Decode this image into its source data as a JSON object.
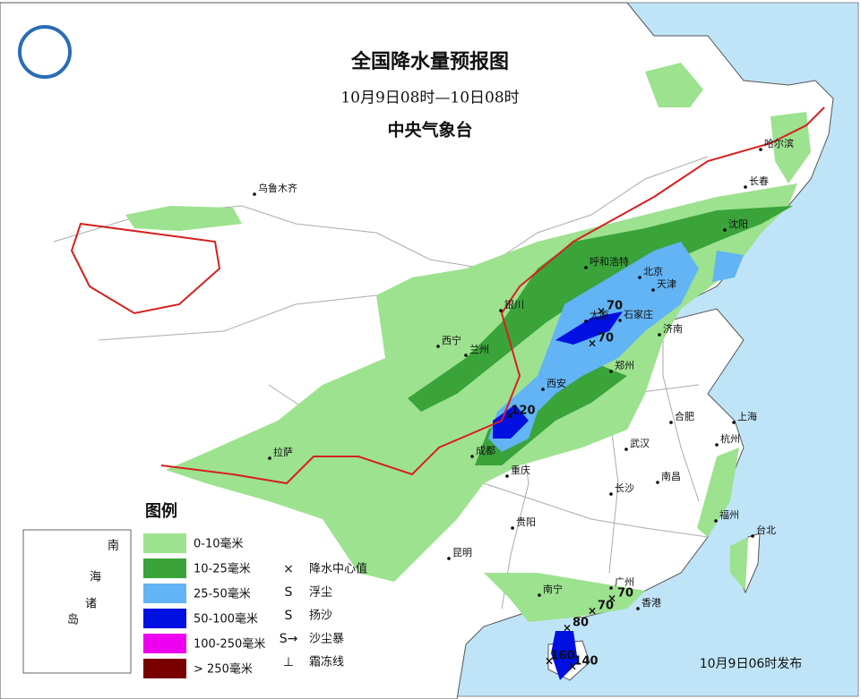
{
  "title": "全国降水量预报图",
  "period": "10月9日08时—10日08时",
  "issuer": "中央气象台",
  "cities": [
    "乌鲁木齐",
    "哈尔滨",
    "长春",
    "沈阳",
    "呼和浩特",
    "北京",
    "天津",
    "石家庄",
    "太原",
    "济南",
    "银川",
    "西宁",
    "兰州",
    "西安",
    "郑州",
    "合肥",
    "上海",
    "杭州",
    "武汉",
    "成都",
    "重庆",
    "拉萨",
    "长沙",
    "南昌",
    "贵阳",
    "福州",
    "台北",
    "昆明",
    "南宁",
    "广州",
    "香港"
  ],
  "center_values": [
    70,
    70,
    120,
    70,
    70,
    80,
    160,
    140
  ],
  "legend": {
    "title": "图例",
    "precip": [
      {
        "label": "0-10毫米",
        "color": "#9de28f"
      },
      {
        "label": "10-25毫米",
        "color": "#3aa33a"
      },
      {
        "label": "25-50毫米",
        "color": "#62b4f5"
      },
      {
        "label": "50-100毫米",
        "color": "#0010e0"
      },
      {
        "label": "100-250毫米",
        "color": "#f000f0"
      },
      {
        "label": "> 250毫米",
        "color": "#7a0000"
      }
    ],
    "symbols": [
      "降水中心值",
      "浮尘",
      "扬沙",
      "沙尘暴",
      "霜冻线"
    ]
  },
  "inset": [
    "南",
    "海",
    "诸",
    "岛"
  ],
  "issued": "10月9日06时发布"
}
